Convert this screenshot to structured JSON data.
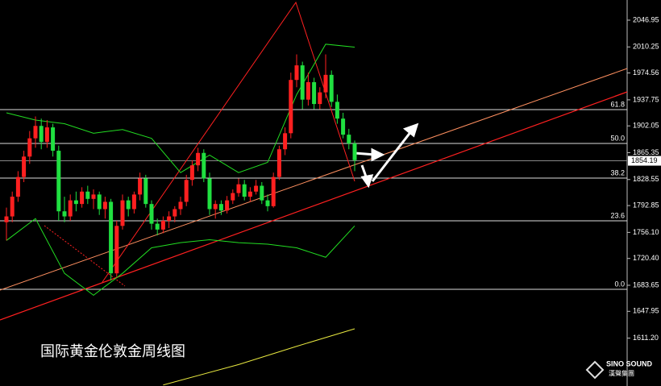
{
  "chart_data": {
    "type": "candlestick",
    "title": "国际黄金伦敦金周线图",
    "up_color": "#ff2020",
    "down_color": "#20e040",
    "open": [
      1770,
      1778,
      1805,
      1832,
      1860,
      1885,
      1902,
      1880,
      1900,
      1868,
      1785,
      1778,
      1800,
      1795,
      1812,
      1802,
      1808,
      1788,
      1798,
      1700,
      1765,
      1800,
      1788,
      1808,
      1830,
      1795,
      1768,
      1760,
      1772,
      1778,
      1788,
      1798,
      1828,
      1848,
      1865,
      1830,
      1788,
      1795,
      1786,
      1800,
      1810,
      1822,
      1805,
      1812,
      1820,
      1800,
      1792,
      1832,
      1870,
      1892,
      1965,
      1985,
      1938,
      1962,
      1932,
      1948,
      1972,
      1935,
      1912,
      1890,
      1878
    ],
    "high": [
      1790,
      1812,
      1840,
      1868,
      1895,
      1915,
      1912,
      1910,
      1905,
      1875,
      1805,
      1808,
      1812,
      1818,
      1820,
      1815,
      1812,
      1805,
      1802,
      1772,
      1808,
      1805,
      1812,
      1838,
      1835,
      1800,
      1775,
      1778,
      1785,
      1792,
      1805,
      1835,
      1855,
      1872,
      1870,
      1838,
      1800,
      1800,
      1806,
      1815,
      1830,
      1828,
      1818,
      1828,
      1825,
      1808,
      1838,
      1875,
      1900,
      1975,
      2000,
      1990,
      1975,
      1968,
      1955,
      2000,
      1978,
      1945,
      1920,
      1898,
      1882
    ],
    "low": [
      1745,
      1770,
      1798,
      1825,
      1850,
      1872,
      1870,
      1872,
      1860,
      1772,
      1770,
      1772,
      1785,
      1790,
      1795,
      1788,
      1780,
      1775,
      1690,
      1695,
      1760,
      1778,
      1782,
      1800,
      1790,
      1760,
      1752,
      1755,
      1762,
      1770,
      1780,
      1792,
      1820,
      1840,
      1825,
      1780,
      1775,
      1780,
      1782,
      1795,
      1805,
      1800,
      1798,
      1808,
      1795,
      1785,
      1790,
      1828,
      1862,
      1885,
      1955,
      1925,
      1930,
      1925,
      1925,
      1940,
      1928,
      1905,
      1885,
      1870,
      1840
    ],
    "close": [
      1778,
      1805,
      1832,
      1860,
      1885,
      1902,
      1880,
      1900,
      1868,
      1785,
      1778,
      1800,
      1795,
      1812,
      1802,
      1808,
      1788,
      1798,
      1700,
      1765,
      1800,
      1788,
      1808,
      1830,
      1795,
      1768,
      1760,
      1772,
      1778,
      1788,
      1798,
      1828,
      1848,
      1865,
      1830,
      1788,
      1795,
      1786,
      1800,
      1810,
      1822,
      1805,
      1812,
      1820,
      1800,
      1792,
      1832,
      1870,
      1892,
      1965,
      1985,
      1938,
      1962,
      1932,
      1948,
      1972,
      1935,
      1912,
      1890,
      1878,
      1855
    ],
    "overlays": [
      {
        "color": "#22dd22",
        "x": [
          0,
          5,
          10,
          15,
          20,
          25,
          30,
          35,
          40,
          45,
          50,
          55,
          60
        ],
        "values": [
          1920,
          1910,
          1905,
          1892,
          1897,
          1885,
          1838,
          1862,
          1838,
          1852,
          1945,
          2014,
          2010
        ]
      },
      {
        "color": "#22dd22",
        "x": [
          0,
          5,
          10,
          15,
          20,
          25,
          30,
          35,
          40,
          45,
          50,
          55,
          60
        ],
        "values": [
          1745,
          1775,
          1700,
          1670,
          1700,
          1735,
          1742,
          1746,
          1742,
          1740,
          1735,
          1722,
          1765
        ]
      },
      {
        "color": "#e8e840",
        "x": [
          27,
          40,
          50,
          60
        ],
        "values": [
          1547,
          1575,
          1600,
          1624
        ]
      }
    ],
    "fib_levels": [
      {
        "label": "61.8",
        "price": 1924.4
      },
      {
        "label": "50.0",
        "price": 1878.0
      },
      {
        "label": "38.2",
        "price": 1830.5
      },
      {
        "label": "23.6",
        "price": 1772.0
      },
      {
        "label": "0.0",
        "price": 1678.1
      }
    ],
    "last_price": 1854.19,
    "xlim": [
      0,
      60
    ],
    "ylim": [
      1545.6,
      2074.55
    ],
    "yticks": [
      2046.95,
      2010.25,
      1974.56,
      1937.75,
      1902.05,
      1865.35,
      1828.55,
      1792.85,
      {
        "value": 1756.1,
        "label": "1756.10"
      },
      {
        "value": 1720.4,
        "label": "1720.40"
      },
      1683.65,
      1647.95,
      {
        "value": 1611.2,
        "label": "1611.20"
      }
    ]
  },
  "logo": {
    "name": "SINO SOUND",
    "sub": "漢聲集團"
  }
}
